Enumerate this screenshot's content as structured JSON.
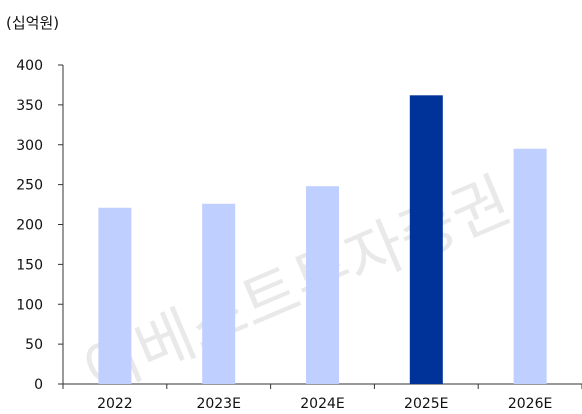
{
  "unit_label": "(십억원)",
  "watermark": "이베스트투자증권",
  "colors": {
    "bar": "#bfcfff",
    "highlight": "#00339a",
    "axis": "#333333"
  },
  "chart_data": {
    "type": "bar",
    "title": "",
    "xlabel": "",
    "ylabel": "",
    "categories": [
      "2022",
      "2023E",
      "2024E",
      "2025E",
      "2026E"
    ],
    "values": [
      221,
      226,
      248,
      362,
      295
    ],
    "highlight_index": 3,
    "ylim": [
      0,
      400
    ],
    "yticks": [
      0,
      50,
      100,
      150,
      200,
      250,
      300,
      350,
      400
    ],
    "grid": false
  }
}
